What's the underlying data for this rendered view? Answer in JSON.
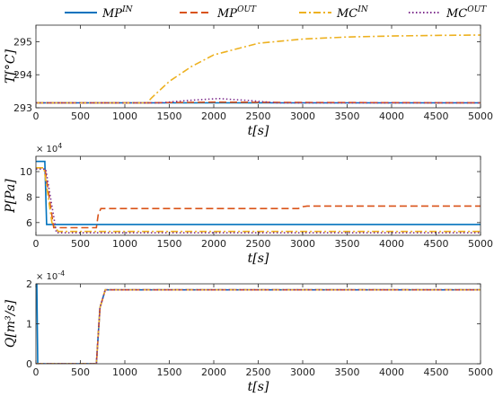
{
  "colors": {
    "MP_IN": "#0072BD",
    "MP_OUT": "#D95319",
    "MC_IN": "#EDB120",
    "MC_OUT": "#7E2F8E"
  },
  "legend": [
    {
      "key": "MP_IN",
      "base": "MP",
      "sup": "IN",
      "dash": "solid"
    },
    {
      "key": "MP_OUT",
      "base": "MP",
      "sup": "OUT",
      "dash": "dashed"
    },
    {
      "key": "MC_IN",
      "base": "MC",
      "sup": "IN",
      "dash": "dashdot"
    },
    {
      "key": "MC_OUT",
      "base": "MC",
      "sup": "OUT",
      "dash": "dotted"
    }
  ],
  "chart_data": [
    {
      "type": "line",
      "ylabel": "T[°C]",
      "xlabel": "t[s]",
      "xlim": [
        0,
        5000
      ],
      "ylim": [
        293,
        295.5
      ],
      "xticks": [
        "0",
        "500",
        "1000",
        "1500",
        "2000",
        "2500",
        "3000",
        "3500",
        "4000",
        "4500",
        "5000"
      ],
      "yticks": [
        "293",
        "294",
        "295"
      ],
      "yscale_label": "",
      "series": [
        {
          "key": "MP_IN",
          "x": [
            0,
            5000
          ],
          "y": [
            293.15,
            293.15
          ]
        },
        {
          "key": "MP_OUT",
          "x": [
            0,
            1200,
            2000,
            3000,
            5000
          ],
          "y": [
            293.15,
            293.15,
            293.17,
            293.16,
            293.15
          ]
        },
        {
          "key": "MC_IN",
          "x": [
            0,
            1250,
            1300,
            1500,
            1750,
            2000,
            2500,
            3000,
            3500,
            4000,
            4500,
            5000
          ],
          "y": [
            293.15,
            293.15,
            293.3,
            293.8,
            294.25,
            294.6,
            294.95,
            295.08,
            295.14,
            295.17,
            295.19,
            295.2
          ]
        },
        {
          "key": "MC_OUT",
          "x": [
            0,
            1400,
            1700,
            2050,
            2400,
            2700,
            5000
          ],
          "y": [
            293.15,
            293.15,
            293.22,
            293.28,
            293.22,
            293.15,
            293.15
          ]
        }
      ]
    },
    {
      "type": "line",
      "ylabel": "P[Pa]",
      "xlabel": "t[s]",
      "xlim": [
        0,
        5000
      ],
      "ylim": [
        5,
        11.2
      ],
      "xticks": [
        "0",
        "500",
        "1000",
        "1500",
        "2000",
        "2500",
        "3000",
        "3500",
        "4000",
        "4500",
        "5000"
      ],
      "yticks": [
        "6",
        "8",
        "10"
      ],
      "yscale_label": "× 10^4",
      "series": [
        {
          "key": "MP_IN",
          "x": [
            0,
            100,
            120,
            5000
          ],
          "y": [
            10.8,
            10.8,
            5.85,
            5.85
          ]
        },
        {
          "key": "MP_OUT",
          "x": [
            0,
            100,
            200,
            250,
            680,
            700,
            730,
            2950,
            3000,
            3050,
            5000
          ],
          "y": [
            10.3,
            10.3,
            5.6,
            5.6,
            5.6,
            6.6,
            7.1,
            7.1,
            7.25,
            7.3,
            7.3
          ]
        },
        {
          "key": "MC_IN",
          "x": [
            0,
            90,
            180,
            250,
            5000
          ],
          "y": [
            10.3,
            10.3,
            6.0,
            5.3,
            5.3
          ]
        },
        {
          "key": "MC_OUT",
          "x": [
            0,
            110,
            230,
            5000
          ],
          "y": [
            10.2,
            10.2,
            5.2,
            5.2
          ]
        }
      ]
    },
    {
      "type": "line",
      "ylabel": "Q[m³/s]",
      "xlabel": "t[s]",
      "xlim": [
        0,
        5000
      ],
      "ylim": [
        0,
        2
      ],
      "xticks": [
        "0",
        "500",
        "1000",
        "1500",
        "2000",
        "2500",
        "3000",
        "3500",
        "4000",
        "4500",
        "5000"
      ],
      "yticks": [
        "0",
        "1",
        "2"
      ],
      "yscale_label": "× 10^-4",
      "series": [
        {
          "key": "MP_IN",
          "x": [
            0,
            10,
            20,
            680,
            720,
            780,
            5000
          ],
          "y": [
            2.0,
            2.0,
            0,
            0,
            1.4,
            1.85,
            1.85
          ]
        },
        {
          "key": "MP_OUT",
          "x": [
            0,
            680,
            720,
            780,
            5000
          ],
          "y": [
            0,
            0,
            1.4,
            1.85,
            1.85
          ]
        },
        {
          "key": "MC_IN",
          "x": [
            0,
            680,
            720,
            780,
            5000
          ],
          "y": [
            0,
            0,
            1.4,
            1.85,
            1.85
          ]
        },
        {
          "key": "MC_OUT",
          "x": [
            0,
            680,
            720,
            780,
            5000
          ],
          "y": [
            0,
            0,
            1.4,
            1.85,
            1.85
          ]
        }
      ]
    }
  ]
}
